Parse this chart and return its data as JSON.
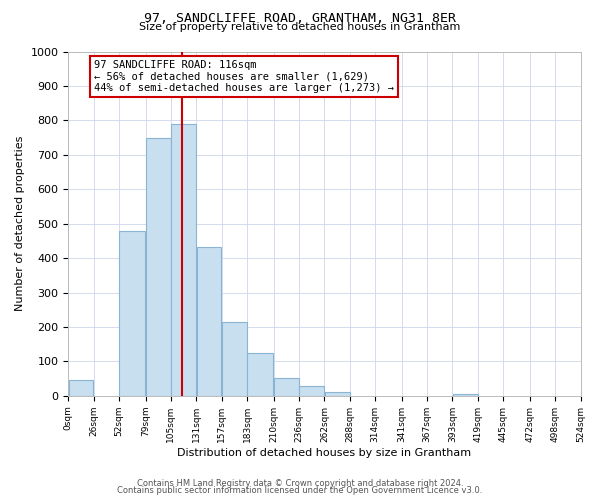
{
  "title": "97, SANDCLIFFE ROAD, GRANTHAM, NG31 8ER",
  "subtitle": "Size of property relative to detached houses in Grantham",
  "xlabel": "Distribution of detached houses by size in Grantham",
  "ylabel": "Number of detached properties",
  "bin_edges": [
    0,
    26,
    52,
    79,
    105,
    131,
    157,
    183,
    210,
    236,
    262,
    288,
    314,
    341,
    367,
    393,
    419,
    445,
    472,
    498,
    524
  ],
  "bin_labels": [
    "0sqm",
    "26sqm",
    "52sqm",
    "79sqm",
    "105sqm",
    "131sqm",
    "157sqm",
    "183sqm",
    "210sqm",
    "236sqm",
    "262sqm",
    "288sqm",
    "314sqm",
    "341sqm",
    "367sqm",
    "393sqm",
    "419sqm",
    "445sqm",
    "472sqm",
    "498sqm",
    "524sqm"
  ],
  "counts": [
    45,
    0,
    480,
    748,
    790,
    432,
    215,
    125,
    52,
    28,
    12,
    0,
    0,
    0,
    0,
    5,
    0,
    0,
    0,
    0
  ],
  "bar_color": "#c8dff0",
  "bar_edge_color": "#8ab4d4",
  "property_line_x": 116,
  "property_line_color": "#cc0000",
  "annotation_line1": "97 SANDCLIFFE ROAD: 116sqm",
  "annotation_line2": "← 56% of detached houses are smaller (1,629)",
  "annotation_line3": "44% of semi-detached houses are larger (1,273) →",
  "annotation_box_color": "#ffffff",
  "annotation_box_edge_color": "#cc0000",
  "ylim": [
    0,
    1000
  ],
  "yticks": [
    0,
    100,
    200,
    300,
    400,
    500,
    600,
    700,
    800,
    900,
    1000
  ],
  "footer_line1": "Contains HM Land Registry data © Crown copyright and database right 2024.",
  "footer_line2": "Contains public sector information licensed under the Open Government Licence v3.0.",
  "bg_color": "#ffffff",
  "grid_color": "#cdd6e8"
}
